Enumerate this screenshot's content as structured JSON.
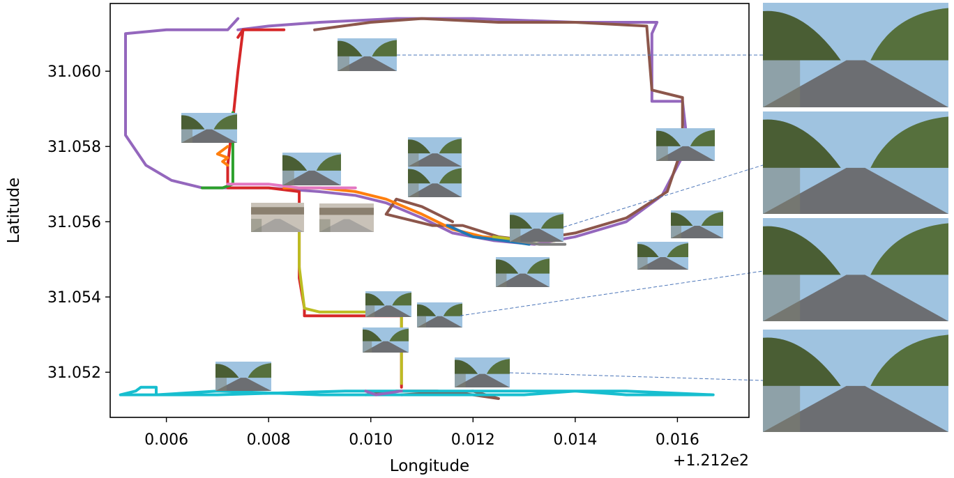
{
  "chart_data": {
    "type": "line",
    "title": "",
    "xlabel": "Longitude",
    "ylabel": "Latitude",
    "x_offset_label": "+1.212e2",
    "xlim": [
      0.0049,
      0.0174
    ],
    "ylim": [
      31.0508,
      31.0618
    ],
    "x_ticks": [
      {
        "value": 0.006,
        "label": "0.006"
      },
      {
        "value": 0.008,
        "label": "0.008"
      },
      {
        "value": 0.01,
        "label": "0.010"
      },
      {
        "value": 0.012,
        "label": "0.012"
      },
      {
        "value": 0.014,
        "label": "0.014"
      },
      {
        "value": 0.016,
        "label": "0.016"
      }
    ],
    "y_ticks": [
      {
        "value": 31.052,
        "label": "31.052"
      },
      {
        "value": 31.054,
        "label": "31.054"
      },
      {
        "value": 31.056,
        "label": "31.056"
      },
      {
        "value": 31.058,
        "label": "31.058"
      },
      {
        "value": 31.06,
        "label": "31.060"
      }
    ],
    "grid": false,
    "legend": "none",
    "series": [
      {
        "color": "#9467bd",
        "points": [
          [
            0.0074,
            31.0614
          ],
          [
            0.0072,
            31.0611
          ],
          [
            0.006,
            31.0611
          ],
          [
            0.0052,
            31.061
          ],
          [
            0.0052,
            31.0596
          ],
          [
            0.0052,
            31.0583
          ],
          [
            0.0056,
            31.0575
          ],
          [
            0.0061,
            31.0571
          ],
          [
            0.0067,
            31.0569
          ],
          [
            0.0072,
            31.0569
          ],
          [
            0.008,
            31.0569
          ],
          [
            0.009,
            31.0568
          ],
          [
            0.0097,
            31.0567
          ],
          [
            0.0103,
            31.0565
          ],
          [
            0.011,
            31.0561
          ],
          [
            0.0116,
            31.0557
          ],
          [
            0.0124,
            31.0555
          ],
          [
            0.0132,
            31.0554
          ],
          [
            0.014,
            31.0556
          ],
          [
            0.015,
            31.056
          ],
          [
            0.0157,
            31.0567
          ],
          [
            0.0162,
            31.058
          ],
          [
            0.0161,
            31.0592
          ],
          [
            0.0155,
            31.0592
          ],
          [
            0.0155,
            31.061
          ],
          [
            0.0156,
            31.0613
          ],
          [
            0.014,
            31.0613
          ],
          [
            0.012,
            31.0614
          ],
          [
            0.0105,
            31.0614
          ],
          [
            0.009,
            31.0613
          ],
          [
            0.008,
            31.0612
          ],
          [
            0.0074,
            31.0611
          ]
        ]
      },
      {
        "color": "#8c564b",
        "points": [
          [
            0.0089,
            31.0611
          ],
          [
            0.01,
            31.0613
          ],
          [
            0.011,
            31.0614
          ],
          [
            0.0125,
            31.0613
          ],
          [
            0.014,
            31.0613
          ],
          [
            0.0154,
            31.0612
          ],
          [
            0.0155,
            31.0595
          ],
          [
            0.0161,
            31.0593
          ],
          [
            0.0161,
            31.058
          ],
          [
            0.0158,
            31.0568
          ],
          [
            0.015,
            31.0561
          ],
          [
            0.014,
            31.0557
          ],
          [
            0.0131,
            31.0555
          ],
          [
            0.0125,
            31.0556
          ],
          [
            0.0118,
            31.0559
          ],
          [
            0.0112,
            31.0559
          ],
          [
            0.0103,
            31.0562
          ],
          [
            0.0105,
            31.0566
          ],
          [
            0.011,
            31.0564
          ],
          [
            0.0116,
            31.056
          ]
        ]
      },
      {
        "color": "#8c564b",
        "points": [
          [
            0.0099,
            31.0514
          ],
          [
            0.0105,
            31.0515
          ],
          [
            0.0113,
            31.0515
          ],
          [
            0.012,
            31.0514
          ],
          [
            0.0125,
            31.0513
          ],
          [
            0.012,
            31.0515
          ],
          [
            0.0106,
            31.0514
          ]
        ]
      },
      {
        "color": "#d62728",
        "points": [
          [
            0.0074,
            31.0609
          ],
          [
            0.0075,
            31.0611
          ],
          [
            0.0083,
            31.0611
          ],
          [
            0.0075,
            31.0611
          ],
          [
            0.0074,
            31.06
          ],
          [
            0.0073,
            31.0587
          ],
          [
            0.0072,
            31.0575
          ],
          [
            0.0072,
            31.0569
          ],
          [
            0.008,
            31.0569
          ],
          [
            0.0086,
            31.0568
          ],
          [
            0.0086,
            31.0558
          ],
          [
            0.0086,
            31.0545
          ],
          [
            0.0087,
            31.0537
          ],
          [
            0.0087,
            31.0535
          ],
          [
            0.0095,
            31.0535
          ],
          [
            0.0106,
            31.0535
          ],
          [
            0.0106,
            31.053
          ],
          [
            0.0106,
            31.052
          ],
          [
            0.0106,
            31.0516
          ]
        ]
      },
      {
        "color": "#2ca02c",
        "points": [
          [
            0.0073,
            31.0589
          ],
          [
            0.0073,
            31.058
          ],
          [
            0.0073,
            31.057
          ],
          [
            0.0071,
            31.0569
          ],
          [
            0.0067,
            31.0569
          ]
        ]
      },
      {
        "color": "#ff7f0e",
        "points": [
          [
            0.0072,
            31.058
          ],
          [
            0.007,
            31.0578
          ],
          [
            0.0072,
            31.0577
          ],
          [
            0.0071,
            31.0576
          ],
          [
            0.0072,
            31.0575
          ]
        ]
      },
      {
        "color": "#ff7f0e",
        "points": [
          [
            0.0083,
            31.0569
          ],
          [
            0.009,
            31.0569
          ],
          [
            0.0097,
            31.0568
          ],
          [
            0.0103,
            31.0566
          ],
          [
            0.011,
            31.0562
          ],
          [
            0.0116,
            31.0558
          ],
          [
            0.0122,
            31.0556
          ],
          [
            0.013,
            31.0555
          ]
        ]
      },
      {
        "color": "#e377c2",
        "points": [
          [
            0.0072,
            31.057
          ],
          [
            0.008,
            31.057
          ],
          [
            0.0086,
            31.0569
          ],
          [
            0.0092,
            31.0569
          ],
          [
            0.0097,
            31.0569
          ]
        ]
      },
      {
        "color": "#1f77b4",
        "points": [
          [
            0.0115,
            31.0559
          ],
          [
            0.012,
            31.0556
          ],
          [
            0.0126,
            31.0555
          ],
          [
            0.0131,
            31.0554
          ]
        ]
      },
      {
        "color": "#bcbd22",
        "points": [
          [
            0.0086,
            31.056
          ],
          [
            0.0086,
            31.0548
          ],
          [
            0.0087,
            31.0537
          ],
          [
            0.009,
            31.0536
          ],
          [
            0.01,
            31.0536
          ],
          [
            0.0106,
            31.0536
          ],
          [
            0.0106,
            31.0525
          ],
          [
            0.0106,
            31.0517
          ]
        ]
      },
      {
        "color": "#bcbd22",
        "points": [
          [
            0.0124,
            31.0556
          ],
          [
            0.013,
            31.0555
          ],
          [
            0.0136,
            31.0555
          ]
        ]
      },
      {
        "color": "#7f7f7f",
        "points": [
          [
            0.0128,
            31.0555
          ],
          [
            0.0133,
            31.0554
          ],
          [
            0.0138,
            31.0554
          ]
        ]
      },
      {
        "color": "#17becf",
        "points": [
          [
            0.0051,
            31.0514
          ],
          [
            0.0054,
            31.0515
          ],
          [
            0.0055,
            31.0516
          ],
          [
            0.0058,
            31.0516
          ],
          [
            0.0058,
            31.0514
          ],
          [
            0.007,
            31.0515
          ],
          [
            0.009,
            31.0514
          ],
          [
            0.01,
            31.0514
          ],
          [
            0.0115,
            31.0514
          ],
          [
            0.013,
            31.0514
          ],
          [
            0.014,
            31.0515
          ],
          [
            0.015,
            31.0514
          ],
          [
            0.016,
            31.0514
          ],
          [
            0.0167,
            31.0514
          ],
          [
            0.015,
            31.0515
          ],
          [
            0.012,
            31.0515
          ],
          [
            0.0095,
            31.0515
          ],
          [
            0.007,
            31.0514
          ],
          [
            0.0051,
            31.0514
          ]
        ]
      },
      {
        "color": "#9467bd",
        "points": [
          [
            0.0099,
            31.0515
          ],
          [
            0.0101,
            31.0514
          ],
          [
            0.0106,
            31.0515
          ]
        ]
      }
    ]
  },
  "thumbnail_palette": {
    "sky": "#9fc3e0",
    "trees": "#4a5e34",
    "road": "#6c6e72",
    "pavement": "#a7a4a0",
    "leader_line": "#4a74b8"
  }
}
